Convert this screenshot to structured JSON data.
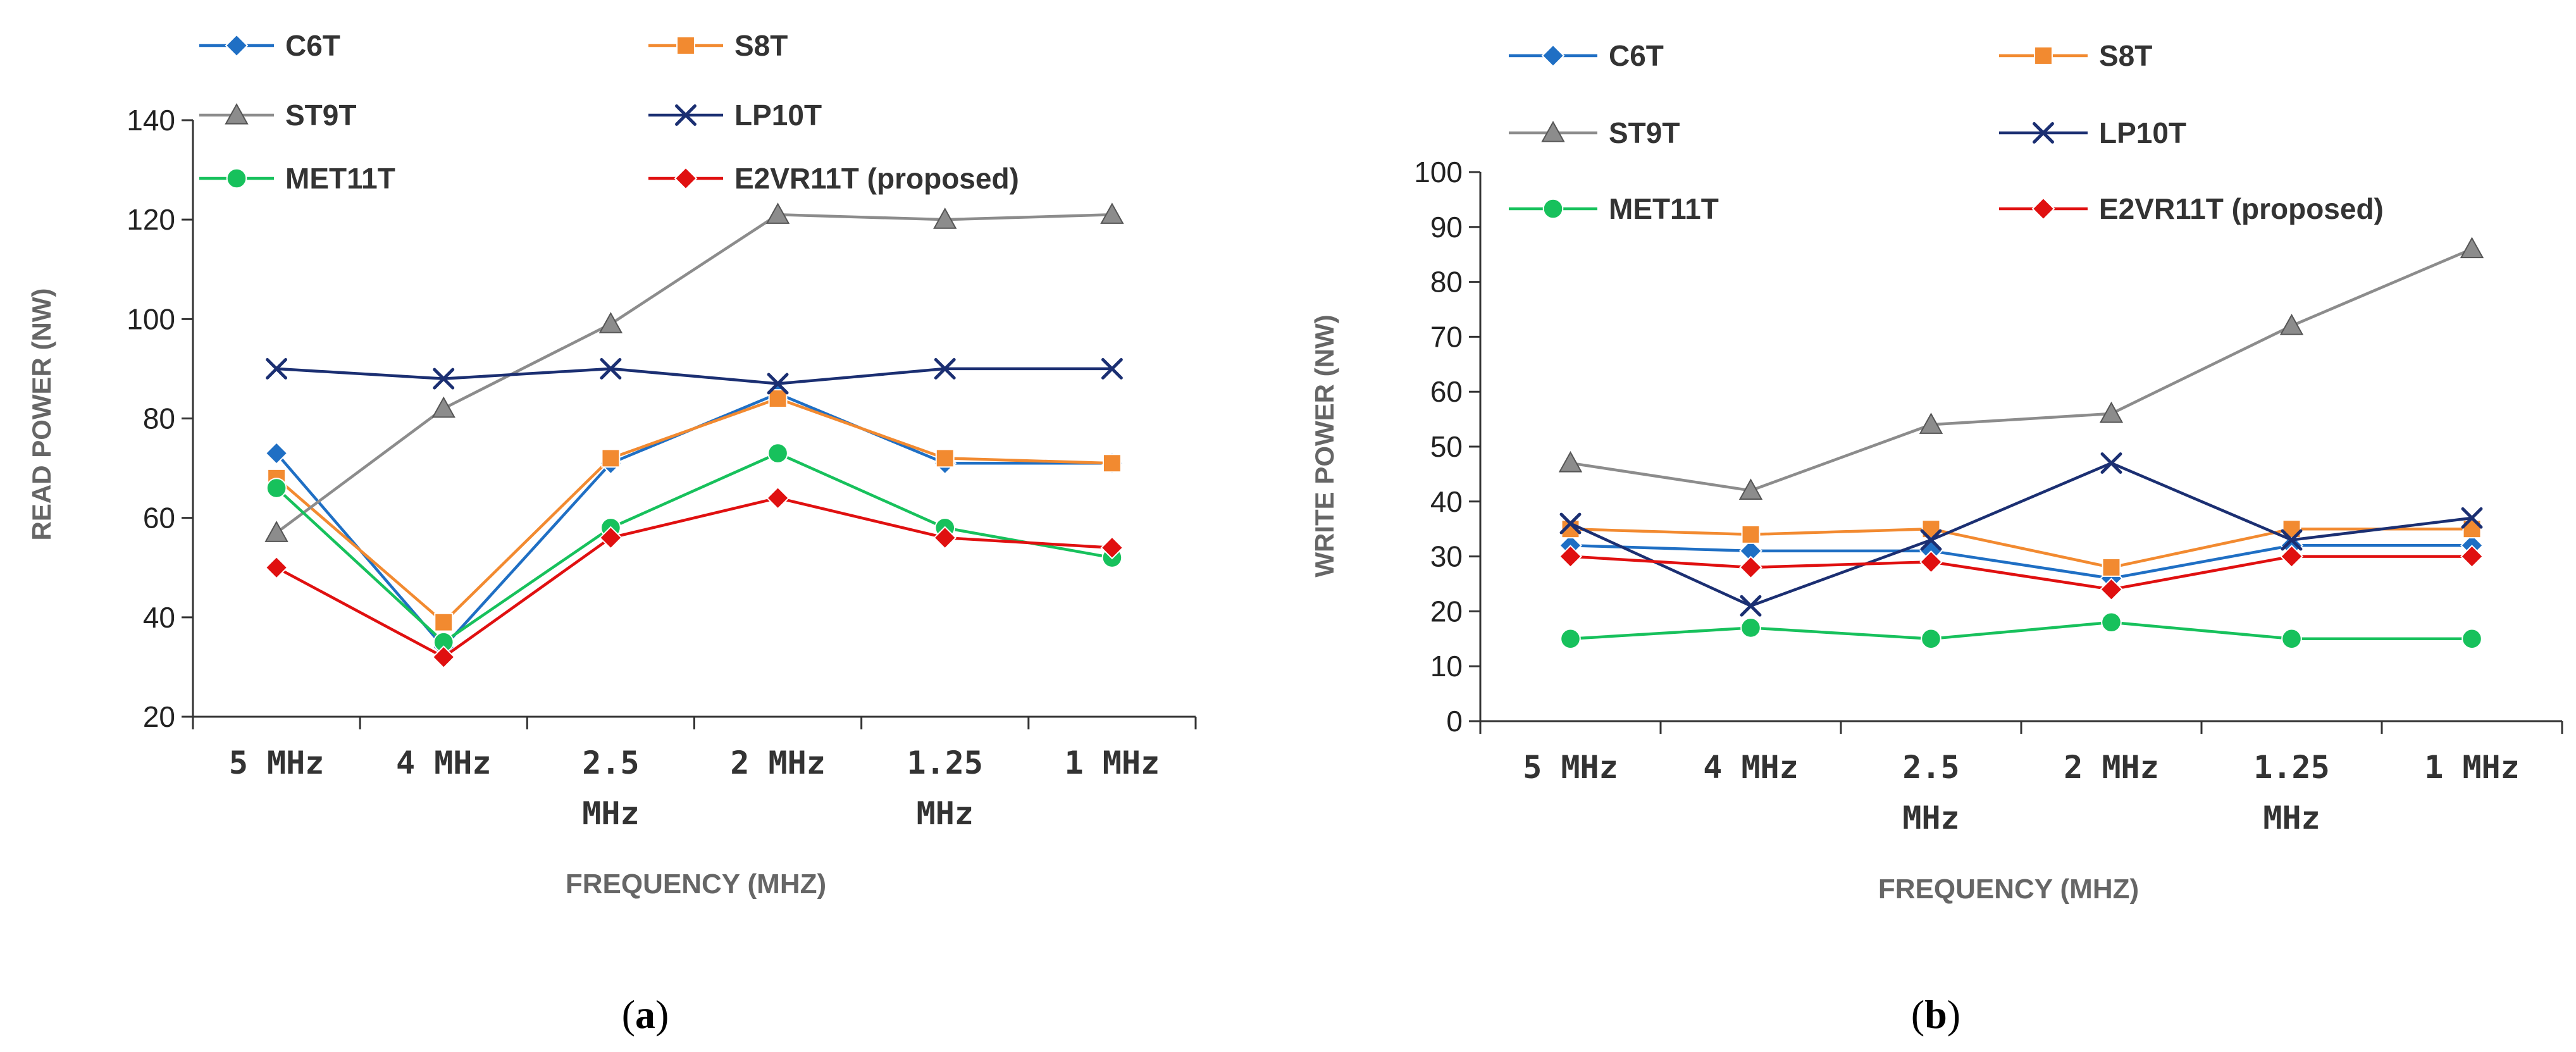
{
  "chart_data": [
    {
      "type": "line",
      "panel_label": "(a)",
      "panel_label_letter": "a",
      "title": "",
      "xlabel": "FREQUENCY (MHZ)",
      "ylabel": "READ POWER (NW)",
      "ylim": [
        20,
        140
      ],
      "yticks": [
        20,
        40,
        60,
        80,
        100,
        120,
        140
      ],
      "grid": false,
      "legend": "top, three rows of two entries",
      "categories": [
        [
          "5 MHz"
        ],
        [
          "4 MHz"
        ],
        [
          "2.5",
          "MHz"
        ],
        [
          "2 MHz"
        ],
        [
          "1.25",
          "MHz"
        ],
        [
          "1 MHz"
        ]
      ],
      "series": [
        {
          "name": "C6T",
          "color": "#1f6fc4",
          "marker": "diamond",
          "values": [
            73,
            34,
            71,
            85,
            71,
            71
          ]
        },
        {
          "name": "S8T",
          "color": "#f28a30",
          "marker": "square",
          "values": [
            68,
            39,
            72,
            84,
            72,
            71
          ]
        },
        {
          "name": "ST9T",
          "color": "#8c8c8c",
          "marker": "triangle",
          "values": [
            57,
            82,
            99,
            121,
            120,
            121
          ]
        },
        {
          "name": "LP10T",
          "color": "#1b2f72",
          "marker": "x",
          "values": [
            90,
            88,
            90,
            87,
            90,
            90
          ]
        },
        {
          "name": "MET11T",
          "color": "#17c15c",
          "marker": "circle",
          "values": [
            66,
            35,
            58,
            73,
            58,
            52
          ]
        },
        {
          "name": "E2VR11T (proposed)",
          "color": "#e01010",
          "marker": "diamond",
          "values": [
            50,
            32,
            56,
            64,
            56,
            54
          ]
        }
      ]
    },
    {
      "type": "line",
      "panel_label": "(b)",
      "panel_label_letter": "b",
      "title": "",
      "xlabel": "FREQUENCY (MHZ)",
      "ylabel": "WRITE POWER (NW)",
      "ylim": [
        0,
        100
      ],
      "yticks": [
        0,
        10,
        20,
        30,
        40,
        50,
        60,
        70,
        80,
        90,
        100
      ],
      "grid": false,
      "legend": "top, three rows of two entries",
      "categories": [
        [
          "5 MHz"
        ],
        [
          "4 MHz"
        ],
        [
          "2.5",
          "MHz"
        ],
        [
          "2 MHz"
        ],
        [
          "1.25",
          "MHz"
        ],
        [
          "1 MHz"
        ]
      ],
      "series": [
        {
          "name": "C6T",
          "color": "#1f6fc4",
          "marker": "diamond",
          "values": [
            32,
            31,
            31,
            26,
            32,
            32
          ]
        },
        {
          "name": "S8T",
          "color": "#f28a30",
          "marker": "square",
          "values": [
            35,
            34,
            35,
            28,
            35,
            35
          ]
        },
        {
          "name": "ST9T",
          "color": "#8c8c8c",
          "marker": "triangle",
          "values": [
            47,
            42,
            54,
            56,
            72,
            86
          ]
        },
        {
          "name": "LP10T",
          "color": "#1b2f72",
          "marker": "x",
          "values": [
            36,
            21,
            33,
            47,
            33,
            37
          ]
        },
        {
          "name": "MET11T",
          "color": "#17c15c",
          "marker": "circle",
          "values": [
            15,
            17,
            15,
            18,
            15,
            15
          ]
        },
        {
          "name": "E2VR11T (proposed)",
          "color": "#e01010",
          "marker": "diamond",
          "values": [
            30,
            28,
            29,
            24,
            30,
            30
          ]
        }
      ]
    }
  ]
}
